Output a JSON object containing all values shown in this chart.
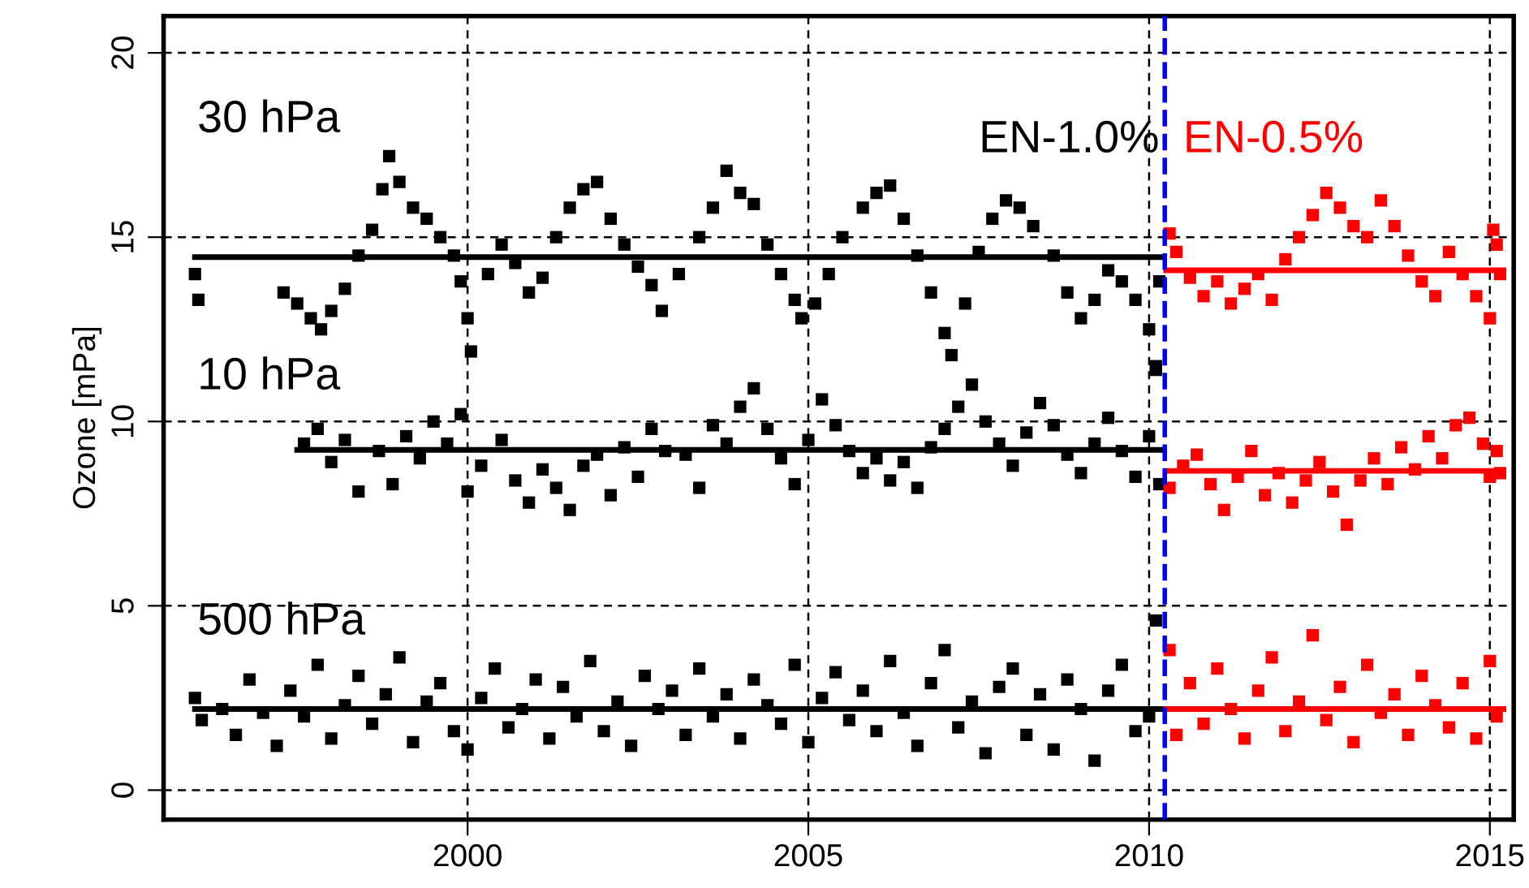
{
  "chart_data": {
    "type": "scatter",
    "ylabel": "Ozone [mPa]",
    "xlim": [
      1995.54,
      2015.35
    ],
    "ylim": [
      -0.8,
      21
    ],
    "xticks": [
      2000,
      2005,
      2010,
      2015
    ],
    "yticks": [
      0,
      5,
      10,
      15,
      20
    ],
    "grid": true,
    "annotations": [
      "30 hPa",
      "10 hPa",
      "500 hPa"
    ],
    "ref_lines": [
      {
        "axis": "x",
        "value": 2010.23,
        "color": "#0000ff",
        "line_style": "dashed"
      }
    ],
    "series": [
      {
        "name": "EN-1.0%",
        "color": "#000000",
        "marker": "square",
        "x": [
          1996.0,
          1996.05,
          1997.3,
          1997.5,
          1997.7,
          1997.85,
          1998.0,
          1998.2,
          1998.4,
          1998.6,
          1998.75,
          1998.85,
          1999.0,
          1999.2,
          1999.4,
          1999.6,
          1999.8,
          1999.9,
          2000.0,
          2000.05,
          2000.3,
          2000.5,
          2000.7,
          2000.9,
          2001.1,
          2001.3,
          2001.5,
          2001.7,
          2001.9,
          2002.1,
          2002.3,
          2002.5,
          2002.7,
          2002.85,
          2003.1,
          2003.4,
          2003.6,
          2003.8,
          2004.0,
          2004.2,
          2004.4,
          2004.6,
          2004.8,
          2004.9,
          2005.1,
          2005.3,
          2005.5,
          2005.8,
          2006.0,
          2006.2,
          2006.4,
          2006.6,
          2006.8,
          2007.0,
          2007.1,
          2007.3,
          2007.5,
          2007.7,
          2007.9,
          2008.1,
          2008.3,
          2008.6,
          2008.8,
          2009.0,
          2009.2,
          2009.4,
          2009.6,
          2009.8,
          2010.0,
          2010.1,
          2010.15,
          1997.6,
          1997.8,
          1998.0,
          1998.2,
          1998.4,
          1998.7,
          1998.9,
          1999.1,
          1999.3,
          1999.5,
          1999.7,
          1999.9,
          2000.0,
          2000.2,
          2000.5,
          2000.7,
          2000.9,
          2001.1,
          2001.3,
          2001.5,
          2001.7,
          2001.9,
          2002.1,
          2002.3,
          2002.5,
          2002.7,
          2002.9,
          2003.2,
          2003.4,
          2003.6,
          2003.8,
          2004.0,
          2004.2,
          2004.4,
          2004.6,
          2004.8,
          2005.0,
          2005.2,
          2005.4,
          2005.6,
          2005.8,
          2006.0,
          2006.2,
          2006.4,
          2006.6,
          2006.8,
          2007.0,
          2007.2,
          2007.4,
          2007.6,
          2007.8,
          2008.0,
          2008.2,
          2008.4,
          2008.6,
          2008.8,
          2009.0,
          2009.2,
          2009.4,
          2009.6,
          2009.8,
          2010.0,
          2010.1,
          2010.15,
          1996.0,
          1996.1,
          1996.4,
          1996.6,
          1996.8,
          1997.0,
          1997.2,
          1997.4,
          1997.6,
          1997.8,
          1998.0,
          1998.2,
          1998.4,
          1998.6,
          1998.8,
          1999.0,
          1999.2,
          1999.4,
          1999.6,
          1999.8,
          2000.0,
          2000.2,
          2000.4,
          2000.6,
          2000.8,
          2001.0,
          2001.2,
          2001.4,
          2001.6,
          2001.8,
          2002.0,
          2002.2,
          2002.4,
          2002.6,
          2002.8,
          2003.0,
          2003.2,
          2003.4,
          2003.6,
          2003.8,
          2004.0,
          2004.2,
          2004.4,
          2004.6,
          2004.8,
          2005.0,
          2005.2,
          2005.4,
          2005.6,
          2005.8,
          2006.0,
          2006.2,
          2006.4,
          2006.6,
          2006.8,
          2007.0,
          2007.2,
          2007.4,
          2007.6,
          2007.8,
          2008.0,
          2008.2,
          2008.4,
          2008.6,
          2008.8,
          2009.0,
          2009.2,
          2009.4,
          2009.6,
          2009.8,
          2010.0,
          2010.1
        ],
        "values": [
          14.0,
          13.3,
          13.5,
          13.2,
          12.8,
          12.5,
          13.0,
          13.6,
          14.5,
          15.2,
          16.3,
          17.2,
          16.5,
          15.8,
          15.5,
          15.0,
          14.5,
          13.8,
          12.8,
          11.9,
          14.0,
          14.8,
          14.3,
          13.5,
          13.9,
          15.0,
          15.8,
          16.3,
          16.5,
          15.5,
          14.8,
          14.2,
          13.7,
          13.0,
          14.0,
          15.0,
          15.8,
          16.8,
          16.2,
          15.9,
          14.8,
          14.0,
          13.3,
          12.8,
          13.2,
          14.0,
          15.0,
          15.8,
          16.2,
          16.4,
          15.5,
          14.5,
          13.5,
          12.4,
          11.8,
          13.2,
          14.6,
          15.5,
          16.0,
          15.8,
          15.3,
          14.5,
          13.5,
          12.8,
          13.3,
          14.1,
          13.8,
          13.3,
          12.5,
          11.5,
          13.8,
          9.4,
          9.8,
          8.9,
          9.5,
          8.1,
          9.2,
          8.3,
          9.6,
          9.0,
          10.0,
          9.4,
          10.2,
          8.1,
          8.8,
          9.5,
          8.4,
          7.8,
          8.7,
          8.2,
          7.6,
          8.8,
          9.1,
          8.0,
          9.3,
          8.5,
          9.8,
          9.2,
          9.1,
          8.2,
          9.9,
          9.4,
          10.4,
          10.9,
          9.8,
          9.0,
          8.3,
          9.5,
          10.6,
          9.9,
          9.2,
          8.6,
          9.0,
          8.4,
          8.9,
          8.2,
          9.3,
          9.8,
          10.4,
          11.0,
          10.0,
          9.4,
          8.8,
          9.7,
          10.5,
          9.9,
          9.1,
          8.6,
          9.4,
          10.1,
          9.2,
          8.5,
          9.6,
          11.4,
          8.3,
          2.5,
          1.9,
          2.2,
          1.5,
          3.0,
          2.1,
          1.2,
          2.7,
          2.0,
          3.4,
          1.4,
          2.3,
          3.1,
          1.8,
          2.6,
          3.6,
          1.3,
          2.4,
          2.9,
          1.6,
          1.1,
          2.5,
          3.3,
          1.7,
          2.2,
          3.0,
          1.4,
          2.8,
          2.0,
          3.5,
          1.6,
          2.4,
          1.2,
          3.1,
          2.2,
          2.7,
          1.5,
          3.3,
          2.0,
          2.6,
          1.4,
          3.0,
          2.3,
          1.8,
          3.4,
          1.3,
          2.5,
          3.2,
          1.9,
          2.7,
          1.6,
          3.5,
          2.1,
          1.2,
          2.9,
          3.8,
          1.7,
          2.4,
          1.0,
          2.8,
          3.3,
          1.5,
          2.6,
          1.1,
          3.0,
          2.2,
          0.8,
          2.7,
          3.4,
          1.6,
          2.0,
          4.6
        ]
      },
      {
        "name": "EN-0.5%",
        "color": "#ff0000",
        "marker": "square",
        "x": [
          2010.3,
          2010.4,
          2010.6,
          2010.8,
          2011.0,
          2011.2,
          2011.4,
          2011.6,
          2011.8,
          2012.0,
          2012.2,
          2012.4,
          2012.6,
          2012.8,
          2013.0,
          2013.2,
          2013.4,
          2013.6,
          2013.8,
          2014.0,
          2014.2,
          2014.4,
          2014.6,
          2014.8,
          2015.0,
          2015.05,
          2015.1,
          2015.15,
          2010.3,
          2010.5,
          2010.7,
          2010.9,
          2011.1,
          2011.3,
          2011.5,
          2011.7,
          2011.9,
          2012.1,
          2012.3,
          2012.5,
          2012.7,
          2012.9,
          2013.1,
          2013.3,
          2013.5,
          2013.7,
          2013.9,
          2014.1,
          2014.3,
          2014.5,
          2014.7,
          2014.9,
          2015.0,
          2015.1,
          2015.15,
          2010.3,
          2010.4,
          2010.6,
          2010.8,
          2011.0,
          2011.2,
          2011.4,
          2011.6,
          2011.8,
          2012.0,
          2012.2,
          2012.4,
          2012.6,
          2012.8,
          2013.0,
          2013.2,
          2013.4,
          2013.6,
          2013.8,
          2014.0,
          2014.2,
          2014.4,
          2014.6,
          2014.8,
          2015.0,
          2015.1
        ],
        "values": [
          15.1,
          14.6,
          13.9,
          13.4,
          13.8,
          13.2,
          13.6,
          14.0,
          13.3,
          14.4,
          15.0,
          15.6,
          16.2,
          15.8,
          15.3,
          15.0,
          16.0,
          15.3,
          14.5,
          13.8,
          13.4,
          14.6,
          14.0,
          13.4,
          12.8,
          15.2,
          14.8,
          14.0,
          8.2,
          8.8,
          9.1,
          8.3,
          7.6,
          8.5,
          9.2,
          8.0,
          8.6,
          7.8,
          8.4,
          8.9,
          8.1,
          7.2,
          8.4,
          9.0,
          8.3,
          9.3,
          8.7,
          9.6,
          9.0,
          9.9,
          10.1,
          9.4,
          8.5,
          9.2,
          8.6,
          3.8,
          1.5,
          2.9,
          1.8,
          3.3,
          2.2,
          1.4,
          2.7,
          3.6,
          1.6,
          2.4,
          4.2,
          1.9,
          2.8,
          1.3,
          3.4,
          2.1,
          2.6,
          1.5,
          3.1,
          2.3,
          1.7,
          2.9,
          1.4,
          3.5,
          2.0
        ]
      },
      {
        "type": "line",
        "color": "#000000",
        "x": [
          1996.0,
          2010.2
        ],
        "values": [
          14.46,
          14.46
        ]
      },
      {
        "type": "line",
        "color": "#000000",
        "x": [
          1997.5,
          2010.2
        ],
        "values": [
          9.23,
          9.23
        ]
      },
      {
        "type": "line",
        "color": "#000000",
        "x": [
          1996.0,
          2010.2
        ],
        "values": [
          2.2,
          2.2
        ]
      },
      {
        "type": "line",
        "color": "#ff0000",
        "x": [
          2010.25,
          2015.2
        ],
        "values": [
          14.1,
          14.1
        ]
      },
      {
        "type": "line",
        "color": "#ff0000",
        "x": [
          2010.25,
          2015.2
        ],
        "values": [
          8.66,
          8.66
        ]
      },
      {
        "type": "line",
        "color": "#ff0000",
        "x": [
          2010.25,
          2015.2
        ],
        "values": [
          2.2,
          2.2
        ]
      }
    ]
  }
}
